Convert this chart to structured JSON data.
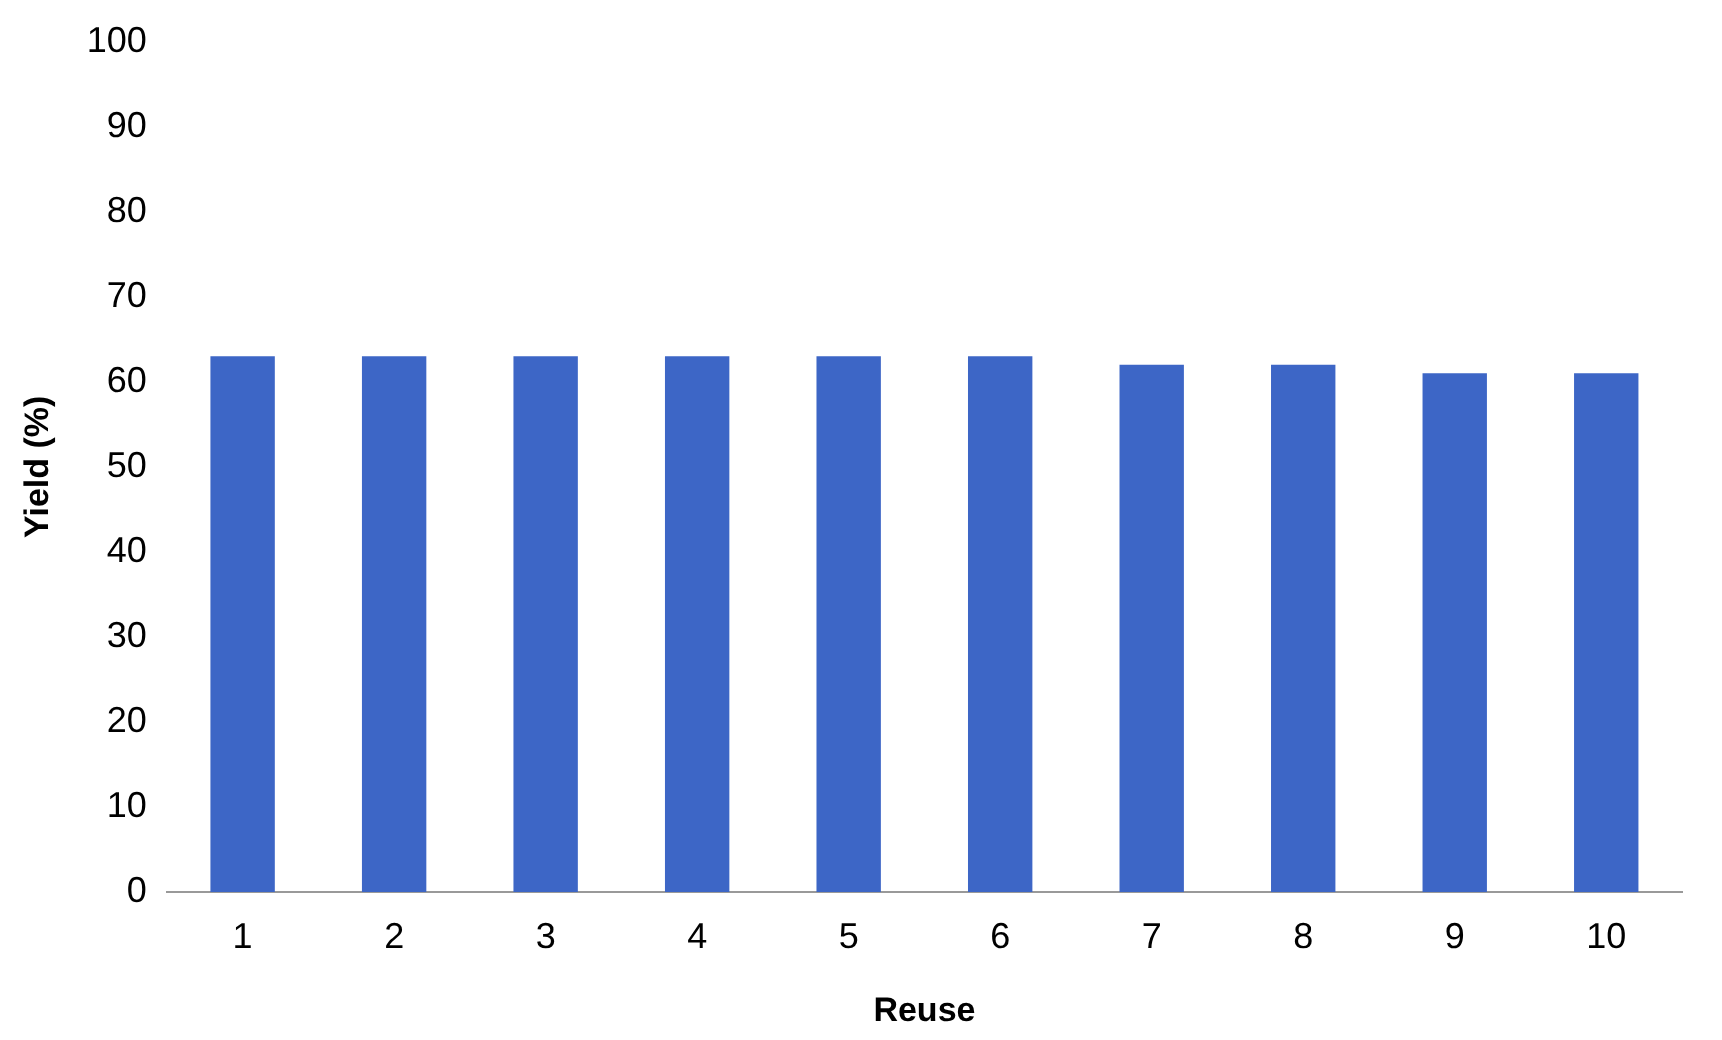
{
  "chart_data": {
    "type": "bar",
    "xlabel": "Reuse",
    "ylabel": "Yield (%)",
    "categories": [
      "1",
      "2",
      "3",
      "4",
      "5",
      "6",
      "7",
      "8",
      "9",
      "10"
    ],
    "values": [
      63,
      63,
      63,
      63,
      63,
      63,
      62,
      62,
      61,
      61
    ],
    "color": "#3d66c6",
    "ylim": [
      0,
      100
    ],
    "yticks": [
      0,
      10,
      20,
      30,
      40,
      50,
      60,
      70,
      80,
      90,
      100
    ],
    "grid": false,
    "legend": false
  }
}
